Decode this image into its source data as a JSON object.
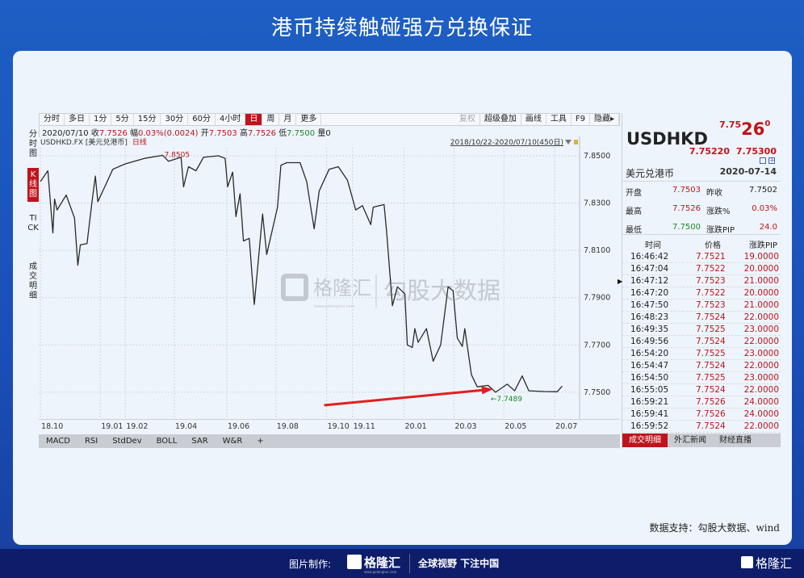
{
  "page_title": "港币持续触碰强方兑换保证",
  "toolbar": {
    "periods": [
      "分时",
      "多日",
      "1分",
      "5分",
      "15分",
      "30分",
      "60分",
      "4小时",
      "日",
      "周",
      "月",
      "更多"
    ],
    "active": "日",
    "tools": [
      "复权",
      "超级叠加",
      "画线",
      "工具",
      "F9",
      "隐藏▸"
    ]
  },
  "info": {
    "date": "2020/07/10",
    "close_label": "收",
    "close": "7.7526",
    "range_label": "幅",
    "range": "0.03%(0.0024)",
    "open_label": "开",
    "open": "7.7503",
    "high_label": "高",
    "high": "7.7526",
    "low_label": "低",
    "low": "7.7500",
    "vol_label": "量",
    "vol": "0"
  },
  "left_tabs": [
    "分时图",
    "K线图",
    "TICK",
    "成交明细"
  ],
  "left_tab_active": "K线图",
  "chart_header": {
    "symbol": "USDHKD.FX [美元兑港币]",
    "period": "日线",
    "range": "2018/10/22-2020/07/10(450日)"
  },
  "watermark": {
    "logo": "格隆汇",
    "sub": "www.gelonghui.com",
    "text": "勾股大数据"
  },
  "chart_data": {
    "type": "line",
    "ylim": [
      7.7387,
      7.8582
    ],
    "xlim": [
      "2018-10-20",
      "2020-07-31"
    ],
    "yticks": [
      "7.8500",
      "7.8300",
      "7.8100",
      "7.7900",
      "7.7700",
      "7.7500"
    ],
    "xticks": [
      {
        "label": "18.10",
        "date": "2018-10-22"
      },
      {
        "label": "19.01",
        "date": "2019-01-02"
      },
      {
        "label": "19.02",
        "date": "2019-02-01"
      },
      {
        "label": "19.04",
        "date": "2019-04-01"
      },
      {
        "label": "19.06",
        "date": "2019-06-03"
      },
      {
        "label": "19.08",
        "date": "2019-08-01"
      },
      {
        "label": "19.10",
        "date": "2019-10-01"
      },
      {
        "label": "19.11",
        "date": "2019-11-01"
      },
      {
        "label": "20.01",
        "date": "2020-01-02"
      },
      {
        "label": "20.03",
        "date": "2020-03-02"
      },
      {
        "label": "20.05",
        "date": "2020-05-01"
      },
      {
        "label": "20.07",
        "date": "2020-07-01"
      }
    ],
    "grid": true,
    "line_color": "#2a2a2a",
    "annotations": [
      {
        "text": "7.8505",
        "date": "2019-03-18",
        "value": 7.8505,
        "color": "#c0141c"
      },
      {
        "text": "←7.7489",
        "date": "2020-04-21",
        "value": 7.7489,
        "color": "#1a8a2a"
      }
    ],
    "arrow": {
      "from": {
        "date": "2019-09-28",
        "value": 7.7445
      },
      "to": {
        "date": "2020-04-18",
        "value": 7.7513
      },
      "color": "#e02020"
    },
    "points": [
      [
        "2018-10-22",
        7.8391
      ],
      [
        "2018-10-31",
        7.8437
      ],
      [
        "2018-11-06",
        7.8174
      ],
      [
        "2018-11-08",
        7.8317
      ],
      [
        "2018-11-11",
        7.8271
      ],
      [
        "2018-11-22",
        7.8334
      ],
      [
        "2018-12-02",
        7.8237
      ],
      [
        "2018-12-06",
        7.8037
      ],
      [
        "2018-12-09",
        7.8123
      ],
      [
        "2018-12-17",
        7.8129
      ],
      [
        "2018-12-23",
        7.8306
      ],
      [
        "2018-12-27",
        7.8414
      ],
      [
        "2018-12-30",
        7.8306
      ],
      [
        "2019-01-08",
        7.8374
      ],
      [
        "2019-01-17",
        7.8443
      ],
      [
        "2019-02-01",
        7.8466
      ],
      [
        "2019-02-24",
        7.8489
      ],
      [
        "2019-03-18",
        7.8502
      ],
      [
        "2019-03-25",
        7.8477
      ],
      [
        "2019-04-09",
        7.8494
      ],
      [
        "2019-04-12",
        7.8369
      ],
      [
        "2019-04-18",
        7.8454
      ],
      [
        "2019-04-27",
        7.8437
      ],
      [
        "2019-05-06",
        7.8494
      ],
      [
        "2019-05-24",
        7.85
      ],
      [
        "2019-06-01",
        7.8489
      ],
      [
        "2019-06-04",
        7.8369
      ],
      [
        "2019-06-10",
        7.8431
      ],
      [
        "2019-06-14",
        7.8243
      ],
      [
        "2019-06-19",
        7.834
      ],
      [
        "2019-06-23",
        7.814
      ],
      [
        "2019-06-30",
        7.8151
      ],
      [
        "2019-07-06",
        7.7871
      ],
      [
        "2019-07-16",
        7.8254
      ],
      [
        "2019-07-21",
        7.8083
      ],
      [
        "2019-08-03",
        7.8283
      ],
      [
        "2019-08-07",
        7.846
      ],
      [
        "2019-08-14",
        7.8471
      ],
      [
        "2019-08-30",
        7.8471
      ],
      [
        "2019-09-07",
        7.8391
      ],
      [
        "2019-09-16",
        7.8191
      ],
      [
        "2019-09-22",
        7.8351
      ],
      [
        "2019-10-04",
        7.8443
      ],
      [
        "2019-10-15",
        7.8454
      ],
      [
        "2019-10-26",
        7.8397
      ],
      [
        "2019-11-05",
        7.8271
      ],
      [
        "2019-11-13",
        7.8289
      ],
      [
        "2019-11-23",
        7.8209
      ],
      [
        "2019-11-26",
        7.8283
      ],
      [
        "2019-12-09",
        7.8294
      ],
      [
        "2019-12-12",
        7.818
      ],
      [
        "2019-12-19",
        7.7866
      ],
      [
        "2019-12-25",
        7.7946
      ],
      [
        "2020-01-03",
        7.7917
      ],
      [
        "2020-01-06",
        7.77
      ],
      [
        "2020-01-12",
        7.7689
      ],
      [
        "2020-01-15",
        7.7769
      ],
      [
        "2020-01-19",
        7.7711
      ],
      [
        "2020-01-29",
        7.7769
      ],
      [
        "2020-02-06",
        7.7631
      ],
      [
        "2020-02-15",
        7.77
      ],
      [
        "2020-02-24",
        7.7946
      ],
      [
        "2020-03-01",
        7.7929
      ],
      [
        "2020-03-06",
        7.7729
      ],
      [
        "2020-03-12",
        7.7694
      ],
      [
        "2020-03-15",
        7.7769
      ],
      [
        "2020-03-23",
        7.7574
      ],
      [
        "2020-03-30",
        7.7523
      ],
      [
        "2020-04-12",
        7.7529
      ],
      [
        "2020-04-21",
        7.75
      ],
      [
        "2020-05-05",
        7.7534
      ],
      [
        "2020-05-14",
        7.7506
      ],
      [
        "2020-05-23",
        7.7569
      ],
      [
        "2020-05-31",
        7.7506
      ],
      [
        "2020-06-18",
        7.7503
      ],
      [
        "2020-07-04",
        7.7502
      ],
      [
        "2020-07-10",
        7.7526
      ]
    ]
  },
  "indicators": [
    "MACD",
    "RSI",
    "StdDev",
    "BOLL",
    "SAR",
    "W&R",
    "+"
  ],
  "quote": {
    "symbol": "USDHKD",
    "price_prefix": "7.75",
    "price_big": "26",
    "price_suffix": "0",
    "bid": "7.75220",
    "ask": "7.75300",
    "name": "美元兑港币",
    "date": "2020-07-14",
    "stats": [
      [
        "开盘",
        "7.7503",
        "昨收",
        "7.7502"
      ],
      [
        "最高",
        "7.7526",
        "涨跌%",
        "0.03%"
      ],
      [
        "最低",
        "7.7500",
        "涨跌PIP",
        "24.0"
      ]
    ],
    "trade_headers": [
      "时间",
      "价格",
      "涨跌PIP"
    ],
    "trades": [
      [
        "16:46:42",
        "7.7521",
        "19.0000"
      ],
      [
        "16:47:04",
        "7.7522",
        "20.0000"
      ],
      [
        "16:47:12",
        "7.7523",
        "21.0000"
      ],
      [
        "16:47:20",
        "7.7522",
        "20.0000"
      ],
      [
        "16:47:50",
        "7.7523",
        "21.0000"
      ],
      [
        "16:48:23",
        "7.7524",
        "22.0000"
      ],
      [
        "16:49:35",
        "7.7525",
        "23.0000"
      ],
      [
        "16:49:56",
        "7.7524",
        "22.0000"
      ],
      [
        "16:54:20",
        "7.7525",
        "23.0000"
      ],
      [
        "16:54:47",
        "7.7524",
        "22.0000"
      ],
      [
        "16:54:50",
        "7.7525",
        "23.0000"
      ],
      [
        "16:55:05",
        "7.7524",
        "22.0000"
      ],
      [
        "16:59:21",
        "7.7526",
        "24.0000"
      ],
      [
        "16:59:41",
        "7.7526",
        "24.0000"
      ],
      [
        "16:59:52",
        "7.7524",
        "22.0000"
      ]
    ],
    "tabs": [
      "成交明细",
      "外汇新闻",
      "财经直播"
    ]
  },
  "source": "数据支持：勾股大数据、wind",
  "footer": {
    "made_by": "图片制作:",
    "logo": "格隆汇",
    "logo_sub": "www.gelonghui.com",
    "slogan": "全球视野 下注中国",
    "corner_logo": "格隆汇"
  },
  "colors": {
    "up": "#c0141c",
    "down": "#1a8a2a",
    "footer": "#0e1d6a"
  }
}
